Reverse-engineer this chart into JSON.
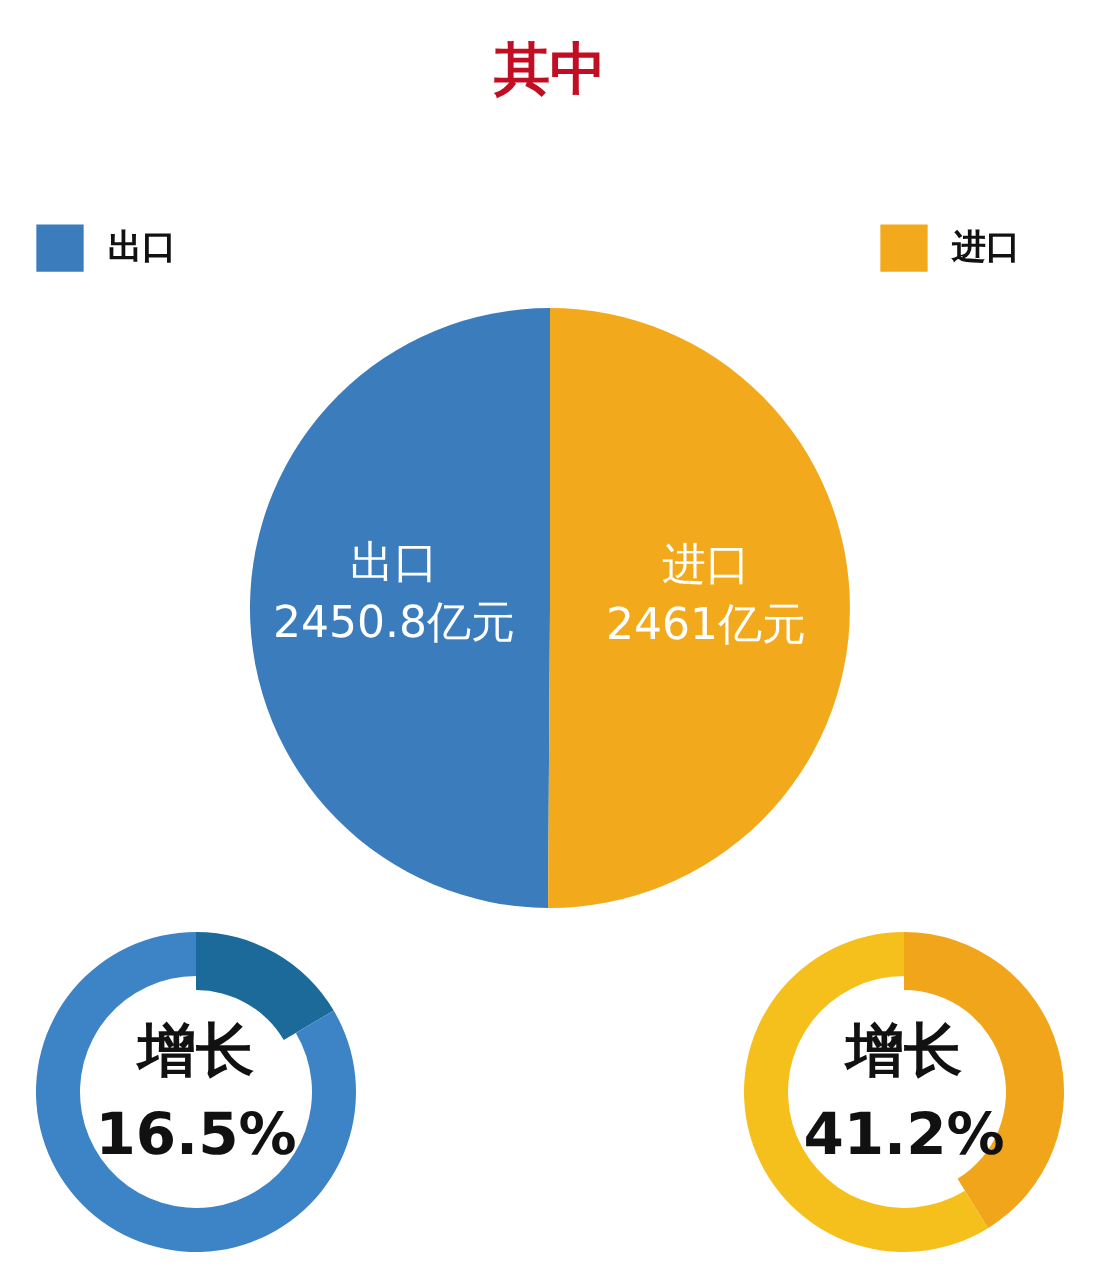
{
  "chart_data": [
    {
      "type": "pie",
      "title": "其中",
      "categories": [
        "出口",
        "进口"
      ],
      "values": [
        2450.8,
        2461
      ],
      "colors": [
        "#3b7cbd",
        "#f2aa1c"
      ],
      "value_labels": [
        "2450.8亿元",
        "2461亿元"
      ],
      "legend": "top"
    },
    {
      "type": "donut",
      "title": "增长",
      "categories": [
        null,
        null
      ],
      "values": [
        16.5,
        83.5
      ],
      "colors": [
        "#1b6a9a",
        "#3d84c6"
      ],
      "annotations": [
        "16.5%"
      ]
    },
    {
      "type": "donut",
      "title": "增长",
      "categories": [
        null,
        null
      ],
      "values": [
        41.2,
        58.8
      ],
      "colors": [
        "#f0a51b",
        "#f5bf1c"
      ],
      "annotations": [
        "41.2%"
      ]
    }
  ]
}
